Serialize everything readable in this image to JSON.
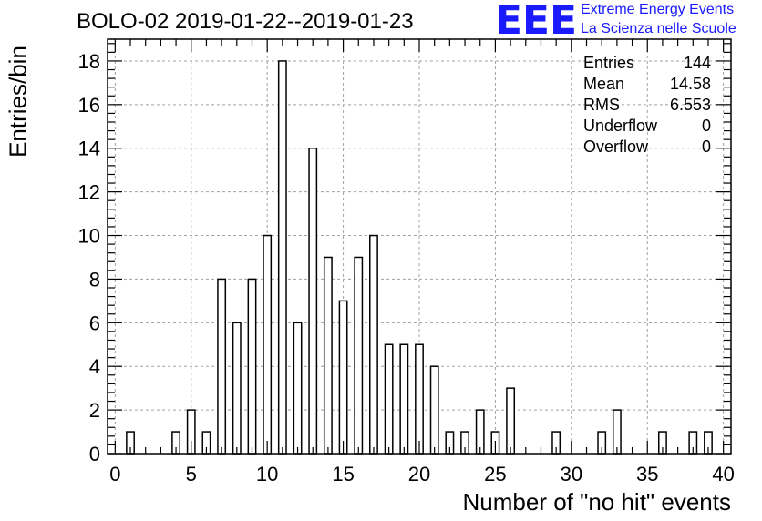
{
  "title": "BOLO-02 2019-01-22--2019-01-23",
  "brand": {
    "logo_text": "EEE",
    "line1": "Extreme Energy Events",
    "line2": "La Scienza nelle Scuole",
    "color": "#1a1aff"
  },
  "stats": [
    {
      "label": "Entries",
      "value": "144"
    },
    {
      "label": "Mean",
      "value": "14.58"
    },
    {
      "label": "RMS",
      "value": "6.553"
    },
    {
      "label": "Underflow",
      "value": "0"
    },
    {
      "label": "Overflow",
      "value": "0"
    }
  ],
  "chart_data": {
    "type": "bar",
    "title": "BOLO-02 2019-01-22--2019-01-23",
    "xlabel": "Number of \"no hit\" events",
    "ylabel": "Entries/bin",
    "xlim": [
      -0.5,
      40.5
    ],
    "ylim": [
      0,
      19
    ],
    "bin_width": 0.5,
    "grid": true,
    "x_ticks": [
      0,
      5,
      10,
      15,
      20,
      25,
      30,
      35,
      40
    ],
    "y_ticks": [
      0,
      2,
      4,
      6,
      8,
      10,
      12,
      14,
      16,
      18
    ],
    "x": [
      1,
      4,
      5,
      6,
      7,
      8,
      9,
      10,
      11,
      12,
      13,
      14,
      15,
      16,
      17,
      18,
      19,
      20,
      21,
      22,
      23,
      24,
      25,
      26,
      29,
      32,
      33,
      36,
      38,
      39
    ],
    "values": [
      1,
      1,
      2,
      1,
      8,
      6,
      8,
      10,
      18,
      6,
      14,
      9,
      7,
      9,
      10,
      5,
      5,
      5,
      4,
      1,
      1,
      2,
      1,
      3,
      1,
      1,
      2,
      1,
      1,
      1
    ]
  }
}
